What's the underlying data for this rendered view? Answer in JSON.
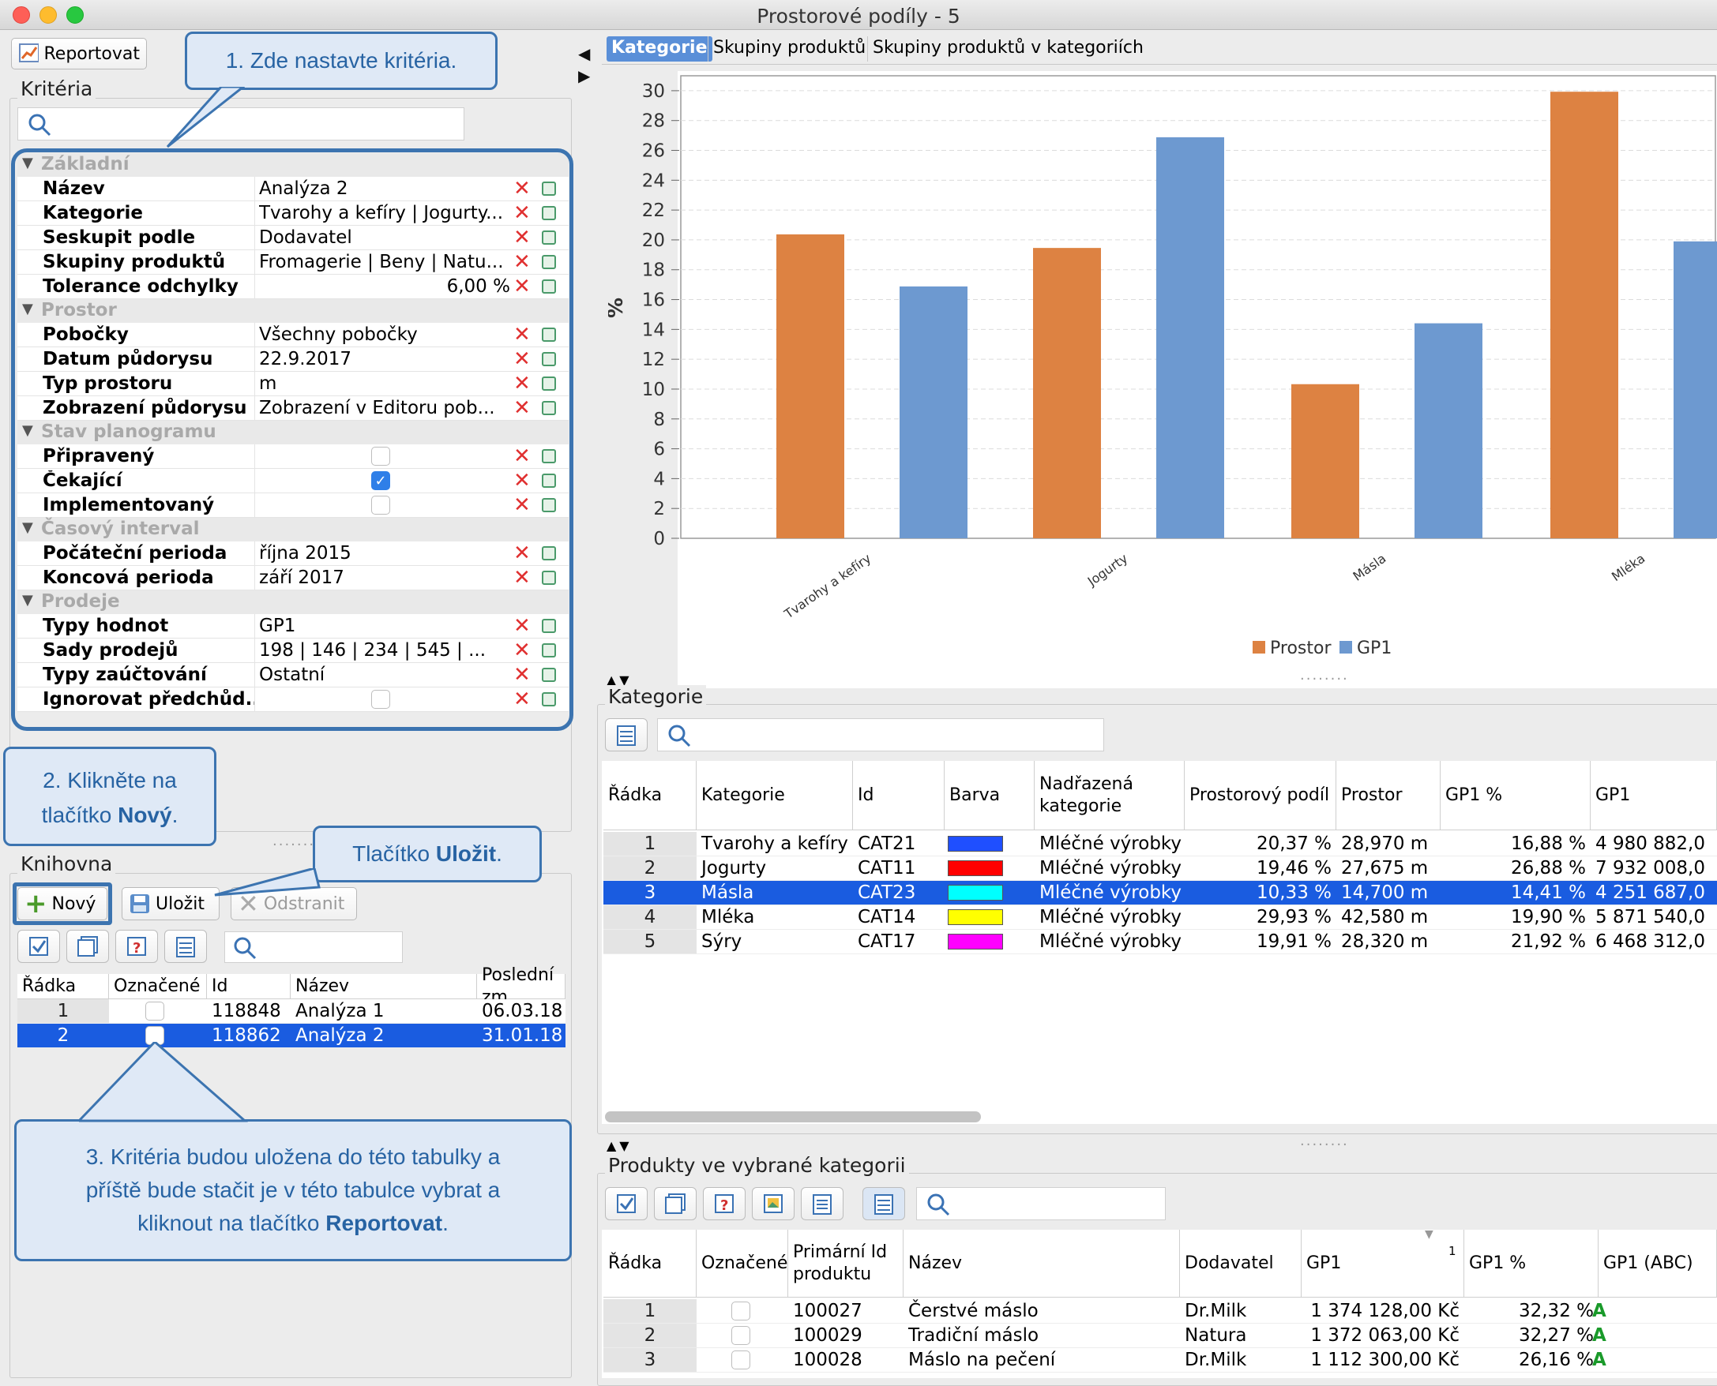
{
  "window": {
    "title": "Prostorové podíly - 5"
  },
  "toolbar": {
    "report_label": "Reportovat"
  },
  "criteria": {
    "title": "Kritéria",
    "sections": [
      {
        "title": "Základní",
        "rows": [
          {
            "key": "Název",
            "value": "Analýza 2"
          },
          {
            "key": "Kategorie",
            "value": "Tvarohy a kefíry | Jogurty..."
          },
          {
            "key": "Seskupit podle",
            "value": "Dodavatel"
          },
          {
            "key": "Skupiny produktů",
            "value": "Fromagerie | Beny | Natu..."
          },
          {
            "key": "Tolerance odchylky",
            "value": "6,00 %"
          }
        ]
      },
      {
        "title": "Prostor",
        "rows": [
          {
            "key": "Pobočky",
            "value": "Všechny pobočky"
          },
          {
            "key": "Datum půdorysu",
            "value": "22.9.2017"
          },
          {
            "key": "Typ prostoru",
            "value": "m"
          },
          {
            "key": "Zobrazení půdorysu",
            "value": "Zobrazení v Editoru pob..."
          }
        ]
      },
      {
        "title": "Stav planogramu",
        "rows": [
          {
            "key": "Připravený",
            "checked": false
          },
          {
            "key": "Čekající",
            "checked": true
          },
          {
            "key": "Implementovaný",
            "checked": false
          }
        ]
      },
      {
        "title": "Časový interval",
        "rows": [
          {
            "key": "Počáteční perioda",
            "value": "října 2015"
          },
          {
            "key": "Koncová perioda",
            "value": "září 2017"
          }
        ]
      },
      {
        "title": "Prodeje",
        "rows": [
          {
            "key": "Typy hodnot",
            "value": "GP1"
          },
          {
            "key": "Sady prodejů",
            "value": "198 | 146 | 234 | 545 | ..."
          },
          {
            "key": "Typy zaúčtování",
            "value": "Ostatní"
          },
          {
            "key": "Ignorovat předchůd...",
            "checked": false
          }
        ]
      }
    ]
  },
  "library": {
    "title": "Knihovna",
    "new_label": "Nový",
    "save_label": "Uložit",
    "delete_label": "Odstranit",
    "columns": [
      "Řádka",
      "Označené",
      "Id",
      "Název",
      "Poslední zm"
    ],
    "rows": [
      {
        "n": "1",
        "id": "118848",
        "name": "Analýza 1",
        "date": "06.03.18"
      },
      {
        "n": "2",
        "id": "118862",
        "name": "Analýza 2",
        "date": "31.01.18"
      }
    ]
  },
  "callouts": {
    "c1": "1. Zde nastavte kritéria.",
    "c2a": "2. Klikněte na",
    "c2b": "tlačítko ",
    "c2bold": "Nový",
    "c2end": ".",
    "c3": "Tlačítko ",
    "c3bold": "Uložit",
    "c3end": ".",
    "c4a": "3. Kritéria budou uložena do této tabulky a",
    "c4b": "příště bude stačit je v této tabulce vybrat a",
    "c4c": "kliknout na tlačítko ",
    "c4bold": "Reportovat",
    "c4end": "."
  },
  "tabs": [
    "Kategorie",
    "Skupiny produktů",
    "Skupiny produktů v kategoriích"
  ],
  "chart_data": {
    "type": "bar",
    "categories": [
      "Tvarohy a kefíry",
      "Jogurty",
      "Másla",
      "Mléka"
    ],
    "series": [
      {
        "name": "Prostor",
        "color": "#dd8242",
        "values": [
          20.37,
          19.46,
          10.33,
          29.93
        ]
      },
      {
        "name": "GP1",
        "color": "#6d99d0",
        "values": [
          16.88,
          26.88,
          14.41,
          19.9
        ]
      }
    ],
    "ylabel": "%",
    "ylim": [
      0,
      31
    ],
    "yticks": [
      0,
      2,
      4,
      6,
      8,
      10,
      12,
      14,
      16,
      18,
      20,
      22,
      24,
      26,
      28,
      30
    ],
    "grid": true,
    "legend": "bottom"
  },
  "categories_table": {
    "title": "Kategorie",
    "columns": [
      "Řádka",
      "Kategorie",
      "Id",
      "Barva",
      "Nadřazená kategorie",
      "Prostorový podíl",
      "Prostor",
      "GP1 %",
      "GP1"
    ],
    "rows": [
      {
        "n": "1",
        "name": "Tvarohy a kefíry",
        "id": "CAT21",
        "color": "#1f4fff",
        "parent": "Mléčné výrobky",
        "share": "20,37 %",
        "space": "28,970 m",
        "gp_pct": "16,88 %",
        "gp": "4 980 882,0"
      },
      {
        "n": "2",
        "name": "Jogurty",
        "id": "CAT11",
        "color": "#ff0000",
        "parent": "Mléčné výrobky",
        "share": "19,46 %",
        "space": "27,675 m",
        "gp_pct": "26,88 %",
        "gp": "7 932 008,0"
      },
      {
        "n": "3",
        "name": "Másla",
        "id": "CAT23",
        "color": "#00ffff",
        "parent": "Mléčné výrobky",
        "share": "10,33 %",
        "space": "14,700 m",
        "gp_pct": "14,41 %",
        "gp": "4 251 687,0"
      },
      {
        "n": "4",
        "name": "Mléka",
        "id": "CAT14",
        "color": "#ffff00",
        "parent": "Mléčné výrobky",
        "share": "29,93 %",
        "space": "42,580 m",
        "gp_pct": "19,90 %",
        "gp": "5 871 540,0"
      },
      {
        "n": "5",
        "name": "Sýry",
        "id": "CAT17",
        "color": "#ff00ff",
        "parent": "Mléčné výrobky",
        "share": "19,91 %",
        "space": "28,320 m",
        "gp_pct": "21,92 %",
        "gp": "6 468 312,0"
      }
    ]
  },
  "products_table": {
    "title": "Produkty ve vybrané kategorii",
    "columns": [
      "Řádka",
      "Označené",
      "Primární Id produktu",
      "Název",
      "Dodavatel",
      "GP1",
      "GP1 %",
      "GP1 (ABC)"
    ],
    "sort_indicator": "1",
    "rows": [
      {
        "n": "1",
        "id": "100027",
        "name": "Čerstvé máslo",
        "supplier": "Dr.Milk",
        "gp": "1 374 128,00 Kč",
        "gp_pct": "32,32 %",
        "abc": "A"
      },
      {
        "n": "2",
        "id": "100029",
        "name": "Tradiční máslo",
        "supplier": "Natura",
        "gp": "1 372 063,00 Kč",
        "gp_pct": "32,27 %",
        "abc": "A"
      },
      {
        "n": "3",
        "id": "100028",
        "name": "Máslo na pečení",
        "supplier": "Dr.Milk",
        "gp": "1 112 300,00 Kč",
        "gp_pct": "26,16 %",
        "abc": "A"
      }
    ]
  }
}
